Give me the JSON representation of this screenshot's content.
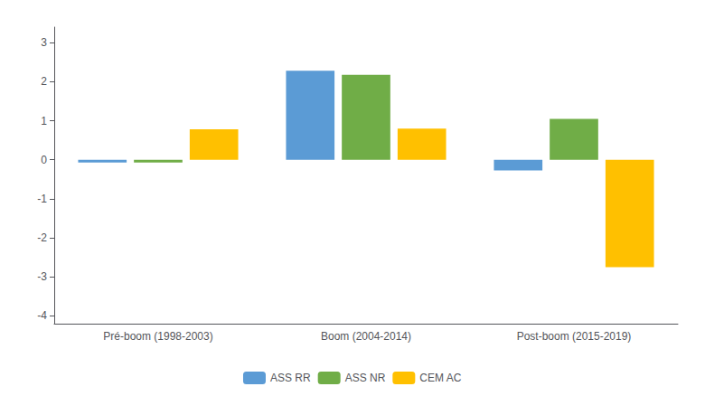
{
  "chart_data": {
    "type": "bar",
    "categories": [
      "Pré-boom (1998-2003)",
      "Boom (2004-2014)",
      "Post-boom (2015-2019)"
    ],
    "series": [
      {
        "name": "ASS RR",
        "color": "#5B9BD5",
        "values": [
          -0.07,
          2.28,
          -0.27
        ]
      },
      {
        "name": "ASS NR",
        "color": "#70AD47",
        "values": [
          -0.07,
          2.18,
          1.05
        ]
      },
      {
        "name": "CEM AC",
        "color": "#FFC000",
        "values": [
          0.78,
          0.8,
          -2.75
        ]
      }
    ],
    "ylim": [
      -4.2,
      3.4
    ],
    "yticks": [
      -4,
      -3,
      -2,
      -1,
      0,
      1,
      2,
      3
    ],
    "grid": false,
    "legend": "bottom"
  }
}
